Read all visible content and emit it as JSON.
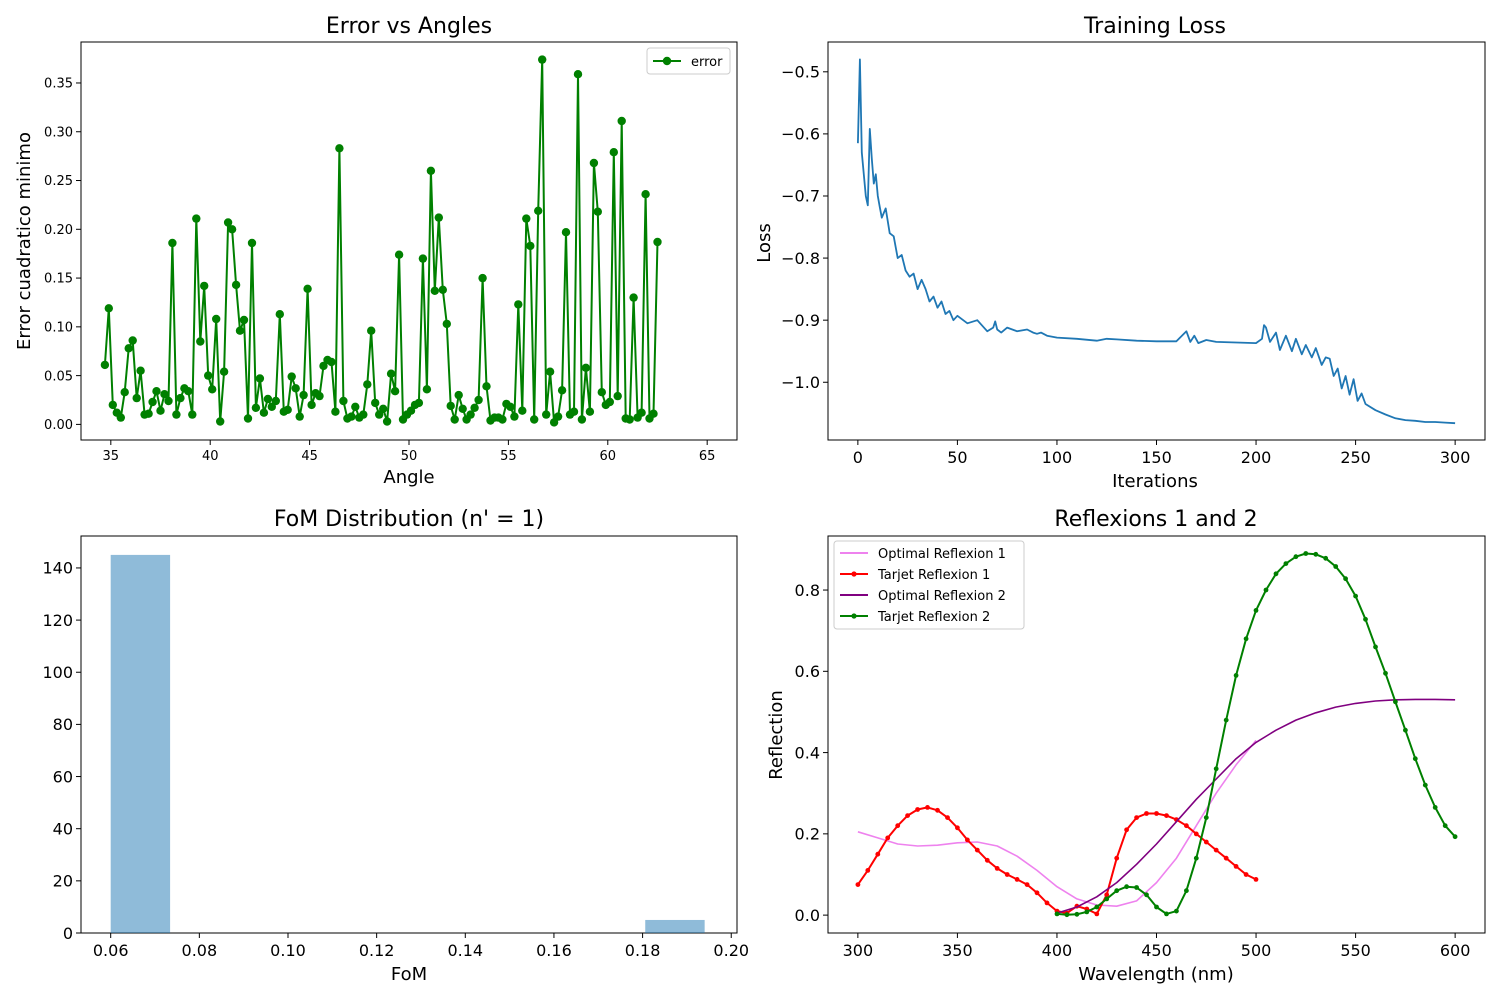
{
  "chart_data": [
    {
      "type": "line",
      "title": "Error vs Angles",
      "xlabel": "Angle",
      "ylabel": "Error cuadratico minimo",
      "xlim": [
        33.5,
        66.5
      ],
      "ylim": [
        -0.016,
        0.392
      ],
      "xticks": [
        35,
        40,
        45,
        50,
        55,
        60,
        65
      ],
      "yticks": [
        0.0,
        0.05,
        0.1,
        0.15,
        0.2,
        0.25,
        0.3,
        0.35
      ],
      "ytick_labels": [
        "0.00",
        "0.05",
        "0.10",
        "0.15",
        "0.20",
        "0.25",
        "0.30",
        "0.35"
      ],
      "grid": false,
      "legend": "upper right",
      "series": [
        {
          "name": "error",
          "color": "#008000",
          "marker": "circle",
          "x_start": 34.7,
          "x_step": 0.2,
          "values": [
            0.061,
            0.119,
            0.02,
            0.012,
            0.007,
            0.033,
            0.078,
            0.086,
            0.027,
            0.055,
            0.01,
            0.011,
            0.023,
            0.034,
            0.014,
            0.031,
            0.024,
            0.186,
            0.01,
            0.027,
            0.037,
            0.034,
            0.01,
            0.211,
            0.085,
            0.142,
            0.05,
            0.036,
            0.108,
            0.003,
            0.054,
            0.207,
            0.2,
            0.143,
            0.096,
            0.107,
            0.006,
            0.186,
            0.017,
            0.047,
            0.012,
            0.026,
            0.018,
            0.024,
            0.113,
            0.013,
            0.015,
            0.049,
            0.037,
            0.008,
            0.03,
            0.139,
            0.02,
            0.032,
            0.029,
            0.06,
            0.066,
            0.064,
            0.013,
            0.283,
            0.024,
            0.006,
            0.008,
            0.018,
            0.007,
            0.01,
            0.041,
            0.096,
            0.022,
            0.01,
            0.016,
            0.003,
            0.052,
            0.034,
            0.174,
            0.005,
            0.01,
            0.014,
            0.02,
            0.022,
            0.17,
            0.036,
            0.26,
            0.137,
            0.212,
            0.138,
            0.103,
            0.019,
            0.005,
            0.03,
            0.016,
            0.005,
            0.01,
            0.017,
            0.025,
            0.15,
            0.039,
            0.004,
            0.007,
            0.007,
            0.005,
            0.021,
            0.018,
            0.008,
            0.123,
            0.014,
            0.211,
            0.183,
            0.005,
            0.219,
            0.374,
            0.01,
            0.054,
            0.002,
            0.008,
            0.035,
            0.197,
            0.01,
            0.013,
            0.359,
            0.005,
            0.058,
            0.013,
            0.268,
            0.218,
            0.033,
            0.02,
            0.023,
            0.279,
            0.029,
            0.311,
            0.006,
            0.005,
            0.13,
            0.007,
            0.012,
            0.236,
            0.006,
            0.011,
            0.187
          ]
        }
      ]
    },
    {
      "type": "line",
      "title": "Training Loss",
      "xlabel": "Iterations",
      "ylabel": "Loss",
      "xlim": [
        -15,
        315
      ],
      "ylim": [
        -1.093,
        -0.452
      ],
      "xticks": [
        0,
        50,
        100,
        150,
        200,
        250,
        300
      ],
      "yticks": [
        -0.5,
        -0.6,
        -0.7,
        -0.8,
        -0.9,
        -1.0
      ],
      "ytick_labels": [
        "−0.5",
        "−0.6",
        "−0.7",
        "−0.8",
        "−0.9",
        "−1.0"
      ],
      "grid": false,
      "series": [
        {
          "color": "#1f77b4",
          "x": [
            0,
            1,
            2,
            3,
            4,
            5,
            6,
            7,
            8,
            9,
            10,
            11,
            12,
            14,
            16,
            18,
            20,
            22,
            24,
            26,
            28,
            30,
            32,
            34,
            36,
            38,
            40,
            42,
            44,
            46,
            48,
            50,
            55,
            60,
            65,
            68,
            69,
            70,
            72,
            75,
            80,
            85,
            88,
            90,
            92,
            95,
            100,
            110,
            120,
            125,
            130,
            140,
            150,
            160,
            165,
            167,
            169,
            171,
            175,
            180,
            190,
            200,
            203,
            204,
            205,
            207,
            210,
            212,
            215,
            218,
            220,
            223,
            225,
            228,
            230,
            233,
            235,
            237,
            239,
            241,
            243,
            245,
            247,
            249,
            251,
            253,
            255,
            260,
            265,
            270,
            275,
            280,
            285,
            290,
            295,
            300
          ],
          "values": [
            -0.615,
            -0.48,
            -0.63,
            -0.665,
            -0.7,
            -0.715,
            -0.592,
            -0.64,
            -0.68,
            -0.665,
            -0.7,
            -0.718,
            -0.735,
            -0.72,
            -0.76,
            -0.765,
            -0.8,
            -0.795,
            -0.82,
            -0.83,
            -0.825,
            -0.85,
            -0.835,
            -0.85,
            -0.87,
            -0.862,
            -0.88,
            -0.87,
            -0.89,
            -0.885,
            -0.9,
            -0.893,
            -0.905,
            -0.9,
            -0.918,
            -0.912,
            -0.902,
            -0.915,
            -0.92,
            -0.912,
            -0.918,
            -0.915,
            -0.92,
            -0.922,
            -0.92,
            -0.925,
            -0.928,
            -0.93,
            -0.933,
            -0.93,
            -0.931,
            -0.933,
            -0.934,
            -0.934,
            -0.918,
            -0.935,
            -0.925,
            -0.937,
            -0.932,
            -0.935,
            -0.936,
            -0.937,
            -0.93,
            -0.908,
            -0.912,
            -0.935,
            -0.92,
            -0.948,
            -0.925,
            -0.95,
            -0.93,
            -0.955,
            -0.94,
            -0.96,
            -0.945,
            -0.972,
            -0.96,
            -0.962,
            -0.99,
            -0.978,
            -1.01,
            -0.99,
            -1.02,
            -0.995,
            -1.03,
            -1.018,
            -1.035,
            -1.045,
            -1.052,
            -1.058,
            -1.061,
            -1.062,
            -1.064,
            -1.064,
            -1.065,
            -1.066
          ]
        }
      ]
    },
    {
      "type": "bar",
      "title": "FoM Distribution (n' = 1)",
      "xlabel": "FoM",
      "ylabel": "",
      "xlim": [
        0.0533,
        0.2013
      ],
      "ylim": [
        0,
        152.25
      ],
      "xticks": [
        0.06,
        0.08,
        0.1,
        0.12,
        0.14,
        0.16,
        0.18,
        0.2
      ],
      "xtick_labels": [
        "0.06",
        "0.08",
        "0.10",
        "0.12",
        "0.14",
        "0.16",
        "0.18",
        "0.20"
      ],
      "yticks": [
        0,
        20,
        40,
        60,
        80,
        100,
        120,
        140
      ],
      "grid": false,
      "color": "#1f77b4",
      "alpha": 0.5,
      "bins": [
        {
          "x0": 0.06,
          "x1": 0.0734,
          "count": 145
        },
        {
          "x0": 0.1806,
          "x1": 0.194,
          "count": 5
        }
      ]
    },
    {
      "type": "line",
      "title": "Reflexions 1 and 2",
      "xlabel": "Wavelength (nm)",
      "ylabel": "Reflection",
      "xlim": [
        285,
        615
      ],
      "ylim": [
        -0.044,
        0.933
      ],
      "xticks": [
        300,
        350,
        400,
        450,
        500,
        550,
        600
      ],
      "yticks": [
        0.0,
        0.2,
        0.4,
        0.6,
        0.8
      ],
      "ytick_labels": [
        "0.0",
        "0.2",
        "0.4",
        "0.6",
        "0.8"
      ],
      "grid": false,
      "legend": "upper left",
      "series": [
        {
          "name": "Optimal Reflexion 1",
          "color": "#ee82ee",
          "marker": "none",
          "x": [
            300,
            310,
            320,
            330,
            340,
            350,
            360,
            370,
            380,
            390,
            400,
            410,
            420,
            430,
            440,
            450,
            460,
            470,
            480,
            490,
            500
          ],
          "values": [
            0.205,
            0.19,
            0.175,
            0.17,
            0.172,
            0.178,
            0.18,
            0.17,
            0.145,
            0.11,
            0.07,
            0.04,
            0.025,
            0.022,
            0.035,
            0.08,
            0.14,
            0.22,
            0.3,
            0.37,
            0.43
          ]
        },
        {
          "name": "Tarjet Reflexion 1",
          "color": "#ff0000",
          "marker": "dot",
          "x": [
            300,
            305,
            310,
            315,
            320,
            325,
            330,
            335,
            340,
            345,
            350,
            355,
            360,
            365,
            370,
            375,
            380,
            385,
            390,
            395,
            400,
            405,
            410,
            415,
            420,
            425,
            430,
            435,
            440,
            445,
            450,
            455,
            460,
            465,
            470,
            475,
            480,
            485,
            490,
            495,
            500
          ],
          "values": [
            0.075,
            0.11,
            0.15,
            0.19,
            0.22,
            0.245,
            0.26,
            0.265,
            0.258,
            0.24,
            0.215,
            0.185,
            0.16,
            0.135,
            0.115,
            0.1,
            0.088,
            0.075,
            0.055,
            0.03,
            0.01,
            0.005,
            0.022,
            0.015,
            0.003,
            0.05,
            0.14,
            0.21,
            0.24,
            0.25,
            0.25,
            0.245,
            0.235,
            0.22,
            0.2,
            0.18,
            0.16,
            0.14,
            0.12,
            0.1,
            0.088
          ]
        },
        {
          "name": "Optimal Reflexion 2",
          "color": "#800080",
          "marker": "none",
          "x": [
            400,
            410,
            420,
            430,
            440,
            450,
            460,
            470,
            480,
            490,
            500,
            510,
            520,
            530,
            540,
            550,
            560,
            570,
            580,
            590,
            600
          ],
          "values": [
            0.005,
            0.02,
            0.045,
            0.08,
            0.125,
            0.175,
            0.23,
            0.285,
            0.335,
            0.385,
            0.425,
            0.455,
            0.48,
            0.498,
            0.512,
            0.521,
            0.527,
            0.53,
            0.531,
            0.531,
            0.53
          ]
        },
        {
          "name": "Tarjet Reflexion 2",
          "color": "#008000",
          "marker": "dot",
          "x": [
            400,
            405,
            410,
            415,
            420,
            425,
            430,
            435,
            440,
            445,
            450,
            455,
            460,
            465,
            470,
            475,
            480,
            485,
            490,
            495,
            500,
            505,
            510,
            515,
            520,
            525,
            530,
            535,
            540,
            545,
            550,
            555,
            560,
            565,
            570,
            575,
            580,
            585,
            590,
            595,
            600
          ],
          "values": [
            0.003,
            0.001,
            0.002,
            0.008,
            0.02,
            0.04,
            0.06,
            0.07,
            0.068,
            0.05,
            0.02,
            0.003,
            0.01,
            0.06,
            0.14,
            0.24,
            0.36,
            0.48,
            0.59,
            0.68,
            0.75,
            0.8,
            0.84,
            0.865,
            0.882,
            0.89,
            0.888,
            0.878,
            0.858,
            0.828,
            0.785,
            0.728,
            0.66,
            0.595,
            0.525,
            0.455,
            0.385,
            0.32,
            0.265,
            0.22,
            0.193
          ]
        }
      ]
    }
  ]
}
